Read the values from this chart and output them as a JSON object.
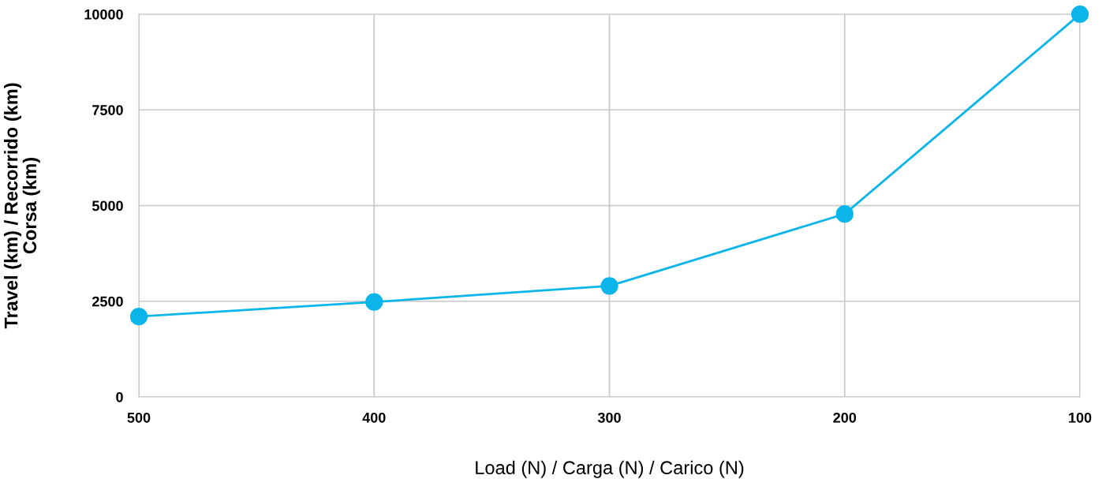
{
  "chart_data": {
    "type": "line",
    "xlabel": "Load (N) / Carga (N) / Carico (N)",
    "ylabel": "Travel (km) / Recorrido (km)\nCorsa (km)",
    "x": [
      500,
      400,
      300,
      200,
      100
    ],
    "series": [
      {
        "color": "#0bb5ea",
        "values": [
          2100,
          2480,
          2900,
          4780,
          10000
        ]
      }
    ],
    "xlim": [
      500,
      100
    ],
    "xticks": [
      500,
      400,
      300,
      200,
      100
    ],
    "ylim": [
      0,
      10000
    ],
    "yticks": [
      0,
      2500,
      5000,
      7500,
      10000
    ],
    "grid": true,
    "marker": "circle",
    "line_style": "solid"
  }
}
